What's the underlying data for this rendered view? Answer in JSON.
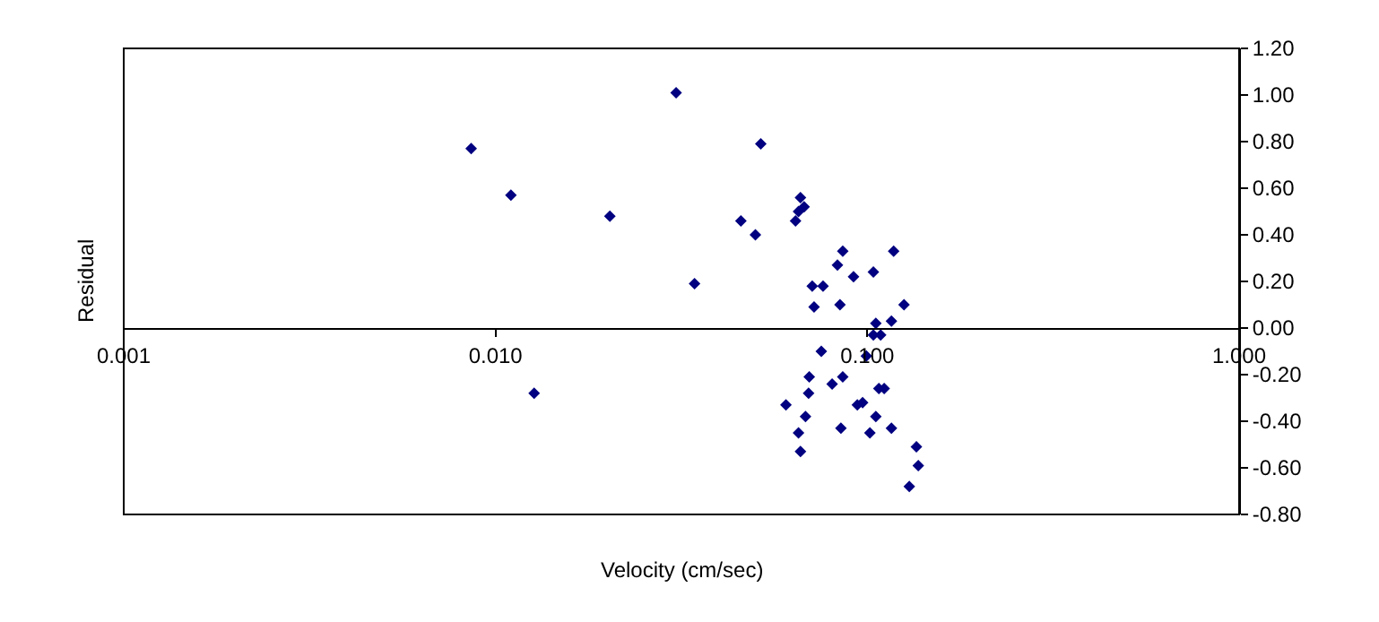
{
  "chart_data": {
    "type": "scatter",
    "xlabel": "Velocity (cm/sec)",
    "ylabel": "Residual",
    "log": "x",
    "grid": false,
    "marker": "diamond",
    "xlim": [
      0.001,
      1.0
    ],
    "xticks": [
      {
        "value": 0.001,
        "label": "0.001"
      },
      {
        "value": 0.01,
        "label": "0.010"
      },
      {
        "value": 0.1,
        "label": "0.100"
      },
      {
        "value": 1.0,
        "label": "1.000"
      }
    ],
    "ylim": [
      -0.8,
      1.2
    ],
    "yticks": [
      {
        "value": -0.8,
        "label": "-0.80"
      },
      {
        "value": -0.6,
        "label": "-0.60"
      },
      {
        "value": -0.4,
        "label": "-0.40"
      },
      {
        "value": -0.2,
        "label": "-0.20"
      },
      {
        "value": 0,
        "label": "0.00"
      },
      {
        "value": 0.2,
        "label": "0.20"
      },
      {
        "value": 0.4,
        "label": "0.40"
      },
      {
        "value": 0.6,
        "label": "0.60"
      },
      {
        "value": 0.8,
        "label": "0.80"
      },
      {
        "value": 1.0,
        "label": "1.00"
      },
      {
        "value": 1.2,
        "label": "1.20"
      }
    ],
    "series": [
      {
        "color": "#000080",
        "x": [
          0.0086,
          0.011,
          0.0203,
          0.0306,
          0.0343,
          0.0457,
          0.0127,
          0.05,
          0.0517,
          0.0641,
          0.0653,
          0.0661,
          0.0676,
          0.0711,
          0.0719,
          0.076,
          0.0752,
          0.0831,
          0.0859,
          0.0844,
          0.0918,
          0.1038,
          0.1177,
          0.1054,
          0.1038,
          0.1086,
          0.1161,
          0.1255,
          0.0994,
          0.0698,
          0.0695,
          0.0604,
          0.0682,
          0.0653,
          0.0661,
          0.0804,
          0.0859,
          0.0849,
          0.094,
          0.0971,
          0.1054,
          0.1016,
          0.1074,
          0.111,
          0.1161,
          0.1355,
          0.1371,
          0.1297
        ],
        "values": [
          0.77,
          0.57,
          0.48,
          1.01,
          0.19,
          0.46,
          -0.28,
          0.4,
          0.79,
          0.46,
          0.5,
          0.56,
          0.52,
          0.18,
          0.09,
          0.18,
          -0.1,
          0.27,
          0.33,
          0.1,
          0.22,
          0.24,
          0.33,
          0.02,
          -0.03,
          -0.03,
          0.03,
          0.1,
          -0.12,
          -0.21,
          -0.28,
          -0.33,
          -0.38,
          -0.45,
          -0.53,
          -0.24,
          -0.21,
          -0.43,
          -0.33,
          -0.32,
          -0.38,
          -0.45,
          -0.26,
          -0.26,
          -0.43,
          -0.51,
          -0.59,
          -0.68
        ]
      }
    ]
  }
}
